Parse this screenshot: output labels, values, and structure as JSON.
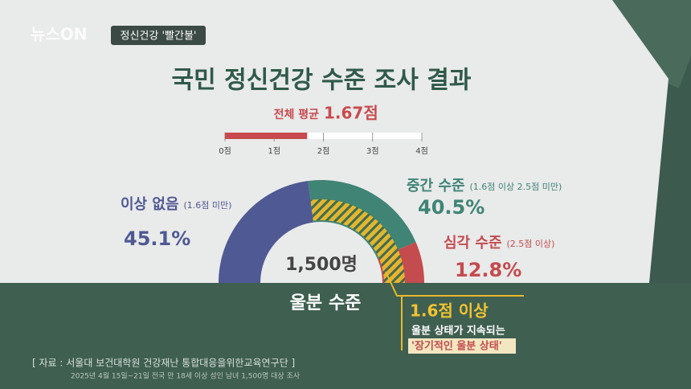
{
  "header": {
    "logo": "뉴스ON",
    "tag": "정신건강 '빨간불'",
    "title": "국민 정신건강 수준 조사 결과"
  },
  "chart_data": [
    {
      "type": "bar",
      "orientation": "horizontal",
      "title": "전체 평균",
      "values": [
        1.67
      ],
      "value_labels": [
        "1.67점"
      ],
      "color": "#c94a4d",
      "xlim": [
        0,
        4
      ],
      "xticks": [
        {
          "value": 0,
          "label": "0점"
        },
        {
          "value": 1,
          "label": "1점"
        },
        {
          "value": 2,
          "label": "2점"
        },
        {
          "value": 3,
          "label": "3점"
        },
        {
          "value": 4,
          "label": "4점"
        }
      ]
    },
    {
      "type": "pie",
      "half": true,
      "center_label": "1,500명",
      "caption": "울분 수준",
      "categories": [
        "이상 없음",
        "중간 수준",
        "심각 수준"
      ],
      "notes": [
        "(1.6점 미만)",
        "(1.6점 이상 2.5점 미만)",
        "(2.5점 이상)"
      ],
      "values": [
        45.1,
        40.5,
        12.8
      ],
      "value_labels": [
        "45.1%",
        "40.5%",
        "12.8%"
      ],
      "colors": [
        "#4f5993",
        "#3f8475",
        "#c44b4e"
      ],
      "annotation": {
        "title": "1.6점 이상",
        "lines": [
          "울분 상태가 지속되는",
          "'장기적인 울분 상태'"
        ]
      }
    }
  ],
  "source": {
    "line": "[ 자료 : 서울대 보건대학원 건강재난 통합대응을위한교육연구단 ]",
    "detail": "2025년 4월 15일~21일 전국 만 18세 이상 성인 남녀 1,500명 대상 조사"
  }
}
